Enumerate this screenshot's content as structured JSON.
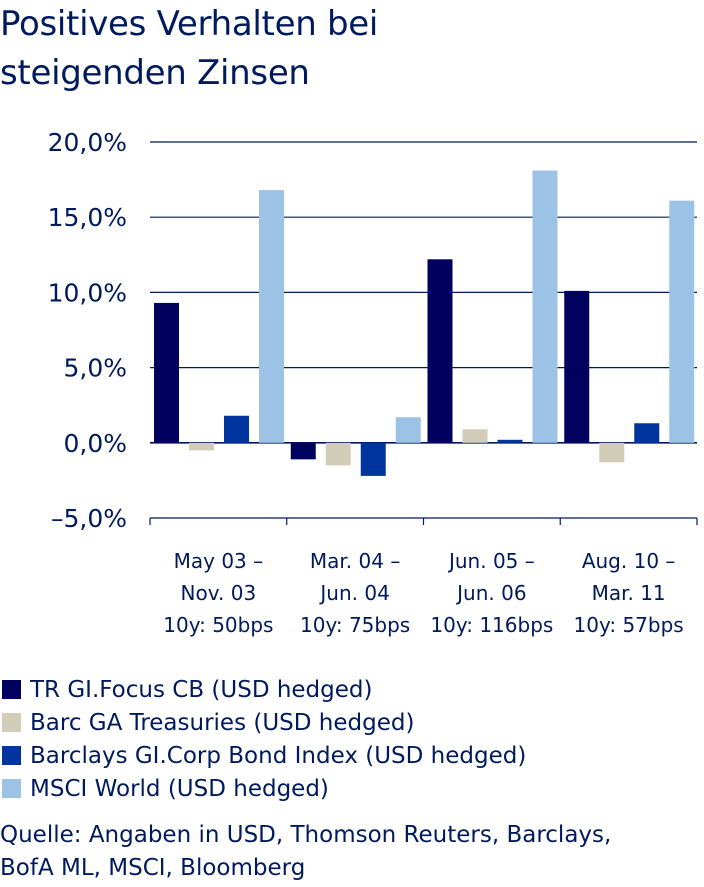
{
  "title_lines": [
    "Positives Verhalten bei",
    "steigenden Zinsen"
  ],
  "chart_data": {
    "type": "bar",
    "title": "Positives Verhalten bei steigenden Zinsen",
    "xlabel": "",
    "ylabel": "",
    "ylim": [
      -5,
      20
    ],
    "y_ticks": [
      20,
      15,
      10,
      5,
      0,
      -5
    ],
    "y_tick_labels": [
      "20,0%",
      "15,0%",
      "10,0%",
      "5,0%",
      "0,0%",
      "–5,0%"
    ],
    "grid": "horizontal",
    "legend_position": "bottom",
    "categories": [
      "May 03 – Nov. 03 10y: 50bps",
      "Mar. 04 – Jun. 04 10y: 75bps",
      "Jun. 05 – Jun. 06 10y: 116bps",
      "Aug. 10 – Mar. 11 10y: 57bps"
    ],
    "category_label_lines": [
      [
        "May 03 –",
        "Nov. 03",
        "10y: 50bps"
      ],
      [
        "Mar. 04 –",
        "Jun. 04",
        "10y: 75bps"
      ],
      [
        "Jun. 05 –",
        "Jun. 06",
        "10y: 116bps"
      ],
      [
        "Aug. 10 –",
        "Mar. 11",
        "10y: 57bps"
      ]
    ],
    "series": [
      {
        "name": "TR GI.Focus CB (USD hedged)",
        "color": "#00005e",
        "values": [
          9.3,
          -1.1,
          12.2,
          10.1
        ]
      },
      {
        "name": "Barc GA Treasuries (USD hedged)",
        "color": "#d2cdb8",
        "values": [
          -0.5,
          -1.5,
          0.9,
          -1.3
        ]
      },
      {
        "name": "Barclays GI.Corp Bond Index (USD hedged)",
        "color": "#0035a0",
        "values": [
          1.8,
          -2.2,
          0.2,
          1.3
        ]
      },
      {
        "name": "MSCI World (USD hedged)",
        "color": "#9cc3e5",
        "values": [
          16.8,
          1.7,
          18.1,
          16.1
        ]
      }
    ]
  },
  "legend": [
    {
      "label": "TR GI.Focus CB (USD hedged)",
      "color": "#00005e"
    },
    {
      "label": "Barc GA Treasuries (USD hedged)",
      "color": "#d2cdb8"
    },
    {
      "label": "Barclays GI.Corp Bond Index (USD hedged)",
      "color": "#0035a0"
    },
    {
      "label": "MSCI World (USD hedged)",
      "color": "#9cc3e5"
    }
  ],
  "source_lines": [
    "Quelle: Angaben in USD, Thomson Reuters, Barclays,",
    "BofA ML, MSCI, Bloomberg"
  ]
}
